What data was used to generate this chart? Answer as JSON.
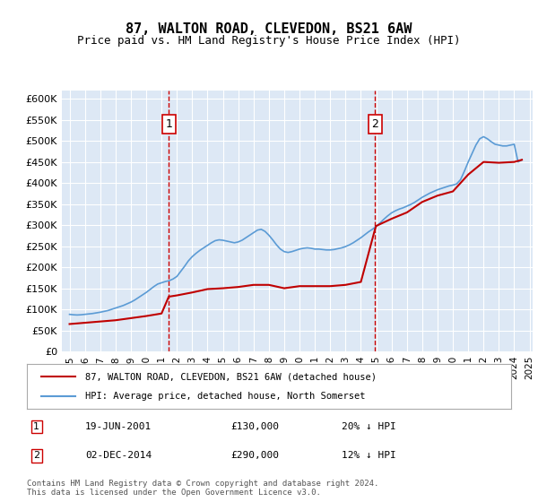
{
  "title": "87, WALTON ROAD, CLEVEDON, BS21 6AW",
  "subtitle": "Price paid vs. HM Land Registry's House Price Index (HPI)",
  "ylabel_ticks": [
    "£0",
    "£50K",
    "£100K",
    "£150K",
    "£200K",
    "£250K",
    "£300K",
    "£350K",
    "£400K",
    "£450K",
    "£500K",
    "£550K",
    "£600K"
  ],
  "ylim": [
    0,
    620000
  ],
  "yticks": [
    0,
    50000,
    100000,
    150000,
    200000,
    250000,
    300000,
    350000,
    400000,
    450000,
    500000,
    550000,
    600000
  ],
  "background_color": "#dde8f5",
  "plot_bg": "#dde8f5",
  "grid_color": "#ffffff",
  "annotation1": {
    "x_year": 2001.47,
    "label": "1",
    "date": "19-JUN-2001",
    "price": "£130,000",
    "pct": "20% ↓ HPI"
  },
  "annotation2": {
    "x_year": 2014.92,
    "label": "2",
    "date": "02-DEC-2014",
    "price": "£290,000",
    "pct": "12% ↓ HPI"
  },
  "legend_line1": "87, WALTON ROAD, CLEVEDON, BS21 6AW (detached house)",
  "legend_line2": "HPI: Average price, detached house, North Somerset",
  "footer": "Contains HM Land Registry data © Crown copyright and database right 2024.\nThis data is licensed under the Open Government Licence v3.0.",
  "hpi_color": "#5b9bd5",
  "price_color": "#c00000",
  "dashed_color": "#cc0000",
  "hpi_years": [
    1995.0,
    1995.25,
    1995.5,
    1995.75,
    1996.0,
    1996.25,
    1996.5,
    1996.75,
    1997.0,
    1997.25,
    1997.5,
    1997.75,
    1998.0,
    1998.25,
    1998.5,
    1998.75,
    1999.0,
    1999.25,
    1999.5,
    1999.75,
    2000.0,
    2000.25,
    2000.5,
    2000.75,
    2001.0,
    2001.25,
    2001.5,
    2001.75,
    2002.0,
    2002.25,
    2002.5,
    2002.75,
    2003.0,
    2003.25,
    2003.5,
    2003.75,
    2004.0,
    2004.25,
    2004.5,
    2004.75,
    2005.0,
    2005.25,
    2005.5,
    2005.75,
    2006.0,
    2006.25,
    2006.5,
    2006.75,
    2007.0,
    2007.25,
    2007.5,
    2007.75,
    2008.0,
    2008.25,
    2008.5,
    2008.75,
    2009.0,
    2009.25,
    2009.5,
    2009.75,
    2010.0,
    2010.25,
    2010.5,
    2010.75,
    2011.0,
    2011.25,
    2011.5,
    2011.75,
    2012.0,
    2012.25,
    2012.5,
    2012.75,
    2013.0,
    2013.25,
    2013.5,
    2013.75,
    2014.0,
    2014.25,
    2014.5,
    2014.75,
    2015.0,
    2015.25,
    2015.5,
    2015.75,
    2016.0,
    2016.25,
    2016.5,
    2016.75,
    2017.0,
    2017.25,
    2017.5,
    2017.75,
    2018.0,
    2018.25,
    2018.5,
    2018.75,
    2019.0,
    2019.25,
    2019.5,
    2019.75,
    2020.0,
    2020.25,
    2020.5,
    2020.75,
    2021.0,
    2021.25,
    2021.5,
    2021.75,
    2022.0,
    2022.25,
    2022.5,
    2022.75,
    2023.0,
    2023.25,
    2023.5,
    2023.75,
    2024.0,
    2024.25,
    2024.5
  ],
  "hpi_values": [
    88000,
    87000,
    86500,
    87000,
    88000,
    89000,
    90000,
    91500,
    93000,
    95000,
    97000,
    100000,
    103000,
    106000,
    109000,
    113000,
    117000,
    122000,
    128000,
    134000,
    140000,
    147000,
    154000,
    160000,
    163000,
    166000,
    168000,
    172000,
    178000,
    190000,
    202000,
    215000,
    225000,
    233000,
    240000,
    246000,
    252000,
    258000,
    263000,
    265000,
    264000,
    262000,
    260000,
    258000,
    260000,
    264000,
    270000,
    276000,
    282000,
    288000,
    290000,
    285000,
    276000,
    265000,
    253000,
    243000,
    237000,
    235000,
    237000,
    240000,
    243000,
    245000,
    246000,
    245000,
    243000,
    243000,
    242000,
    241000,
    241000,
    242000,
    244000,
    246000,
    249000,
    253000,
    258000,
    264000,
    270000,
    277000,
    284000,
    290000,
    297000,
    305000,
    314000,
    322000,
    329000,
    334000,
    338000,
    341000,
    345000,
    349000,
    354000,
    360000,
    366000,
    371000,
    376000,
    380000,
    384000,
    387000,
    390000,
    393000,
    395000,
    398000,
    408000,
    428000,
    450000,
    470000,
    490000,
    505000,
    510000,
    505000,
    498000,
    492000,
    490000,
    488000,
    488000,
    490000,
    492000,
    450000,
    455000
  ],
  "price_years": [
    2001.47,
    2014.92
  ],
  "price_values": [
    130000,
    290000
  ],
  "x_tick_years": [
    1995,
    1996,
    1997,
    1998,
    1999,
    2000,
    2001,
    2002,
    2003,
    2004,
    2005,
    2006,
    2007,
    2008,
    2009,
    2010,
    2011,
    2012,
    2013,
    2014,
    2015,
    2016,
    2017,
    2018,
    2019,
    2020,
    2021,
    2022,
    2023,
    2024,
    2025
  ],
  "xlim": [
    1994.5,
    2025.2
  ]
}
